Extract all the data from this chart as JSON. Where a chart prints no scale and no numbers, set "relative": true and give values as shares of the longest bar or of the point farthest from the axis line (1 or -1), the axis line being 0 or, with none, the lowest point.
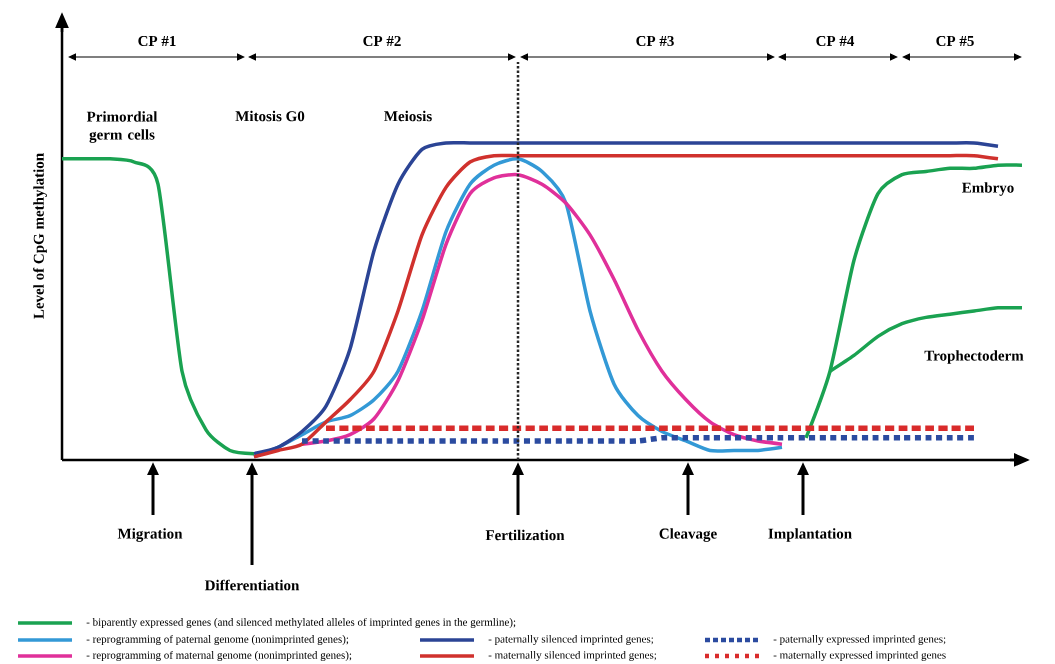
{
  "chart_data": {
    "type": "line",
    "relative": true,
    "ylabel": "Level of CpG methylation",
    "legend": "bottom",
    "categories": [
      null,
      null,
      null,
      null,
      null,
      null,
      null,
      null,
      null,
      null,
      null,
      null,
      null,
      null,
      null,
      null,
      null,
      null,
      null,
      null,
      null,
      null,
      null,
      null,
      null,
      null,
      null,
      null,
      null,
      null,
      null,
      null,
      null,
      null,
      null,
      null,
      null,
      null,
      null,
      null,
      null
    ],
    "series": [
      {
        "name": "- biparently expressed genes (and silenced methylated alleles of imprinted genes in the germline);",
        "color": "#1aa251",
        "values": [
          0.95,
          0.95,
          0.95,
          0.94,
          0.87,
          0.28,
          0.095,
          0.03,
          0.02,
          null,
          null,
          null,
          null,
          null,
          null,
          null,
          null,
          null,
          null,
          null,
          null,
          null,
          null,
          null,
          null,
          null,
          null,
          null,
          null,
          null,
          null,
          0.07,
          0.28,
          0.63,
          0.84,
          0.9,
          0.91,
          0.92,
          0.92,
          0.93,
          0.93
        ]
      },
      {
        "color": "#1aa251",
        "values": [
          null,
          null,
          null,
          null,
          null,
          null,
          null,
          null,
          null,
          null,
          null,
          null,
          null,
          null,
          null,
          null,
          null,
          null,
          null,
          null,
          null,
          null,
          null,
          null,
          null,
          null,
          null,
          null,
          null,
          null,
          null,
          null,
          0.28,
          0.33,
          0.39,
          0.43,
          0.45,
          0.46,
          0.47,
          0.48,
          0.48
        ]
      },
      {
        "name": "- reprogramming of paternal genome (nonimprinted genes);",
        "color": "#3399d6",
        "values": [
          null,
          null,
          null,
          null,
          null,
          null,
          null,
          null,
          0.01,
          0.04,
          0.08,
          0.12,
          0.14,
          0.19,
          0.28,
          0.47,
          0.72,
          0.87,
          0.93,
          0.95,
          0.91,
          0.81,
          0.47,
          0.24,
          0.14,
          0.09,
          0.06,
          0.03,
          0.03,
          0.03,
          0.04,
          null,
          null,
          null,
          null,
          null,
          null,
          null,
          null,
          null,
          null
        ]
      },
      {
        "name": "- reprogramming of maternal genome (nonimprinted genes);",
        "color": "#e0309a",
        "values": [
          null,
          null,
          null,
          null,
          null,
          null,
          null,
          null,
          null,
          null,
          0.05,
          0.06,
          0.08,
          0.13,
          0.25,
          0.44,
          0.68,
          0.84,
          0.89,
          0.9,
          0.87,
          0.81,
          0.71,
          0.57,
          0.41,
          0.28,
          0.19,
          0.12,
          0.08,
          0.06,
          0.05,
          null,
          null,
          null,
          null,
          null,
          null,
          null,
          null,
          null,
          null
        ]
      },
      {
        "name": "- paternally silenced imprinted genes;",
        "color": "#2b4495",
        "values": [
          null,
          null,
          null,
          null,
          null,
          null,
          null,
          null,
          0.02,
          0.04,
          0.09,
          0.17,
          0.35,
          0.66,
          0.87,
          0.98,
          1,
          1,
          1,
          1,
          1,
          1,
          1,
          1,
          1,
          1,
          1,
          1,
          1,
          1,
          1,
          1,
          1,
          1,
          1,
          1,
          1,
          1,
          1,
          0.99,
          null
        ]
      },
      {
        "name": "- maternally silenced imprinted genes;",
        "color": "#d0312d",
        "values": [
          null,
          null,
          null,
          null,
          null,
          null,
          null,
          null,
          0.01,
          0.03,
          0.05,
          0.12,
          0.19,
          0.28,
          0.47,
          0.71,
          0.86,
          0.94,
          0.96,
          0.96,
          0.96,
          0.96,
          0.96,
          0.96,
          0.96,
          0.96,
          0.96,
          0.96,
          0.96,
          0.96,
          0.96,
          0.96,
          0.96,
          0.96,
          0.96,
          0.96,
          0.96,
          0.96,
          0.96,
          0.95,
          null
        ]
      },
      {
        "name": "- paternally expressed imprinted genes;",
        "color": "#2b4ba0",
        "line_style": "dotted",
        "values": [
          null,
          null,
          null,
          null,
          null,
          null,
          null,
          null,
          null,
          null,
          0.06,
          0.06,
          0.06,
          0.06,
          0.06,
          0.06,
          0.06,
          0.06,
          0.06,
          0.06,
          0.06,
          0.06,
          0.06,
          0.06,
          0.06,
          0.07,
          0.07,
          0.07,
          0.07,
          0.07,
          0.07,
          0.07,
          0.07,
          0.07,
          0.07,
          0.07,
          0.07,
          0.07,
          0.07,
          null,
          null
        ]
      },
      {
        "name": "- maternally expressed imprinted genes",
        "color": "#d92b2b",
        "line_style": "dashed",
        "values": [
          null,
          null,
          null,
          null,
          null,
          null,
          null,
          null,
          null,
          null,
          null,
          0.1,
          0.1,
          0.1,
          0.1,
          0.1,
          0.1,
          0.1,
          0.1,
          0.1,
          0.1,
          0.1,
          0.1,
          0.1,
          0.1,
          0.1,
          0.1,
          0.1,
          0.1,
          0.1,
          0.1,
          0.1,
          0.1,
          0.1,
          0.1,
          0.1,
          0.1,
          0.1,
          0.1,
          null,
          null
        ]
      }
    ],
    "annotations": [
      "CP #1",
      "CP #2",
      "CP #3",
      "CP #4",
      "CP #5",
      "Primordial germ cells",
      "Mitosis G0",
      "Meiosis",
      "Embryo",
      "Trophectoderm",
      "Migration",
      "Differentiation",
      "Fertilization",
      "Cleavage",
      "Implantation"
    ]
  }
}
